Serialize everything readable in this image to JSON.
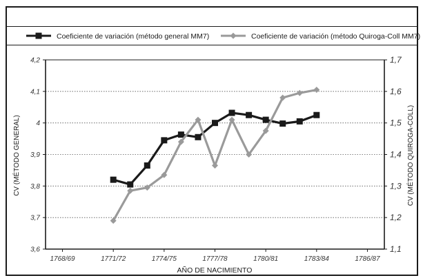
{
  "chart_data": {
    "type": "line",
    "title": "",
    "xlabel": "AÑO DE NACIMIENTO",
    "ylabel_left": "CV (MÉTODO GENERAL)",
    "ylabel_right": "CV (MÉTODO QUIROGA-COLL)",
    "x_tick_labels": [
      "1768/69",
      "1771/72",
      "1774/75",
      "1777/78",
      "1780/81",
      "1783/84",
      "1786/87"
    ],
    "x_tick_years": [
      1768,
      1771,
      1774,
      1777,
      1780,
      1783,
      1786
    ],
    "xlim": [
      1767,
      1787
    ],
    "ylim_left": [
      3.6,
      4.2
    ],
    "ylim_right": [
      1.1,
      1.7
    ],
    "y_left_tick_labels": [
      "4,2",
      "4,1",
      "4",
      "3,9",
      "3,8",
      "3,7",
      "3,6"
    ],
    "y_left_ticks": [
      4.2,
      4.1,
      4.0,
      3.9,
      3.8,
      3.7,
      3.6
    ],
    "y_right_tick_labels": [
      "1,7",
      "1,6",
      "1,5",
      "1,4",
      "1,3",
      "1,2",
      "1,1"
    ],
    "y_right_ticks": [
      1.7,
      1.6,
      1.5,
      1.4,
      1.3,
      1.2,
      1.1
    ],
    "grid": "horizontal dotted",
    "legend_position": "top",
    "series": [
      {
        "name": "Coeficiente de variación (método general MM7)",
        "axis": "left",
        "color": "#1a1a1a",
        "marker": "square",
        "x": [
          1771,
          1772,
          1773,
          1774,
          1775,
          1776,
          1777,
          1778,
          1779,
          1780,
          1781,
          1782,
          1783
        ],
        "values": [
          3.82,
          3.805,
          3.865,
          3.945,
          3.963,
          3.955,
          4.0,
          4.032,
          4.025,
          4.01,
          3.998,
          4.005,
          4.025
        ]
      },
      {
        "name": "Coeficiente de variación (método Quiroga-Coll MM7)",
        "axis": "right",
        "color": "#9a9a9a",
        "marker": "diamond",
        "x": [
          1771,
          1772,
          1773,
          1774,
          1775,
          1776,
          1777,
          1778,
          1779,
          1780,
          1781,
          1782,
          1783
        ],
        "values": [
          1.19,
          1.285,
          1.295,
          1.335,
          1.44,
          1.51,
          1.365,
          1.51,
          1.4,
          1.475,
          1.58,
          1.595,
          1.605
        ]
      }
    ]
  }
}
